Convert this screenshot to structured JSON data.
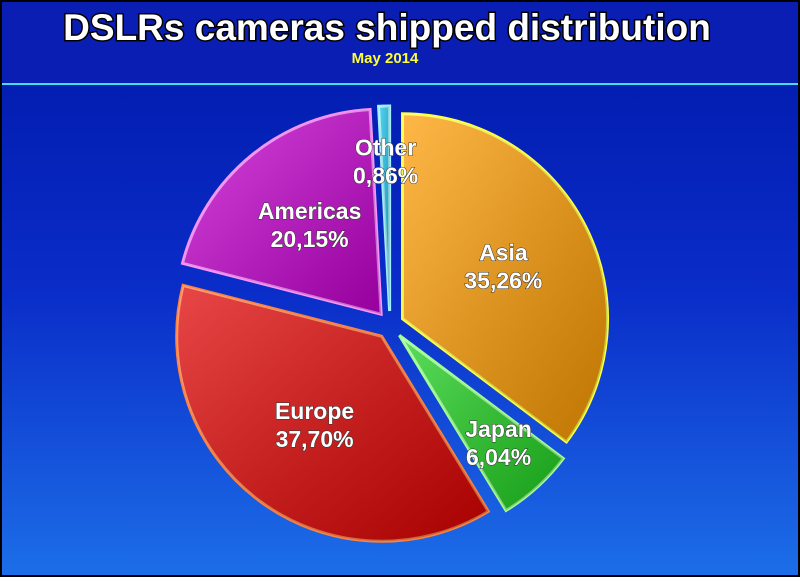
{
  "chart_data": {
    "type": "pie",
    "title": "DSLRs cameras shipped distribution",
    "subtitle": "May 2014",
    "categories": [
      "Asia",
      "Japan",
      "Europe",
      "Americas",
      "Other"
    ],
    "values": [
      35.26,
      6.04,
      37.7,
      20.15,
      0.86
    ],
    "value_labels": [
      "35,26%",
      "6,04%",
      "37,70%",
      "20,15%",
      "0,86%"
    ],
    "colors": [
      "#ff9c00",
      "#1ed21e",
      "#e00000",
      "#c800d2",
      "#18c8f0"
    ]
  }
}
